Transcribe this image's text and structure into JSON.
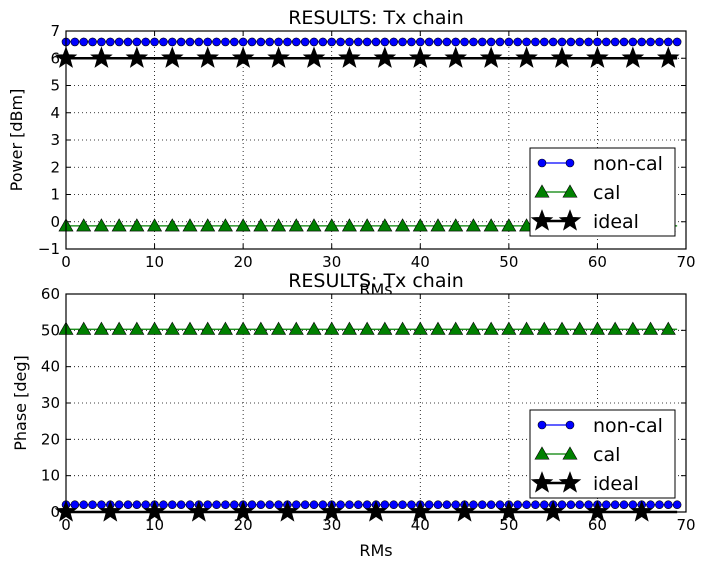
{
  "chart_data": [
    {
      "type": "line",
      "title": "RESULTS: Tx chain",
      "xlabel": "RMs",
      "ylabel": "Power [dBm]",
      "xlim": [
        0,
        70
      ],
      "ylim": [
        -1,
        7
      ],
      "xticks": [
        0,
        10,
        20,
        30,
        40,
        50,
        60,
        70
      ],
      "yticks": [
        -1,
        0,
        1,
        2,
        3,
        4,
        5,
        6,
        7
      ],
      "xtick_labels": [
        "0",
        "10",
        "20",
        "30",
        "40",
        "50",
        "60",
        "70"
      ],
      "ytick_labels": [
        "−1",
        "0",
        "1",
        "2",
        "3",
        "4",
        "5",
        "6",
        "7"
      ],
      "grid": true,
      "legend_position": "lower-right",
      "series": [
        {
          "name": "non-cal",
          "color": "#0000ff",
          "marker": "circle",
          "constant": 6.6,
          "x_from": 0,
          "x_to": 69,
          "marker_every": 1
        },
        {
          "name": "cal",
          "color": "#008000",
          "marker": "triangle",
          "constant": -0.15,
          "x_from": 0,
          "x_to": 69,
          "marker_every": 2
        },
        {
          "name": "ideal",
          "color": "#000000",
          "marker": "star",
          "constant": 6.0,
          "x_from": 0,
          "x_to": 69,
          "marker_every": 4
        }
      ]
    },
    {
      "type": "line",
      "title": "RESULTS: Tx chain",
      "xlabel": "RMs",
      "ylabel": "Phase [deg]",
      "xlim": [
        0,
        70
      ],
      "ylim": [
        0,
        60
      ],
      "xticks": [
        0,
        10,
        20,
        30,
        40,
        50,
        60,
        70
      ],
      "yticks": [
        0,
        10,
        20,
        30,
        40,
        50,
        60
      ],
      "xtick_labels": [
        "0",
        "10",
        "20",
        "30",
        "40",
        "50",
        "60",
        "70"
      ],
      "ytick_labels": [
        "0",
        "10",
        "20",
        "30",
        "40",
        "50",
        "60"
      ],
      "grid": true,
      "legend_position": "lower-right",
      "series": [
        {
          "name": "non-cal",
          "color": "#0000ff",
          "marker": "circle",
          "constant": 2.0,
          "x_from": 0,
          "x_to": 69,
          "marker_every": 1
        },
        {
          "name": "cal",
          "color": "#008000",
          "marker": "triangle",
          "constant": 50.3,
          "x_from": 0,
          "x_to": 69,
          "marker_every": 2
        },
        {
          "name": "ideal",
          "color": "#000000",
          "marker": "star",
          "constant": 0.0,
          "x_from": 0,
          "x_to": 69,
          "marker_every": 5
        }
      ]
    }
  ]
}
